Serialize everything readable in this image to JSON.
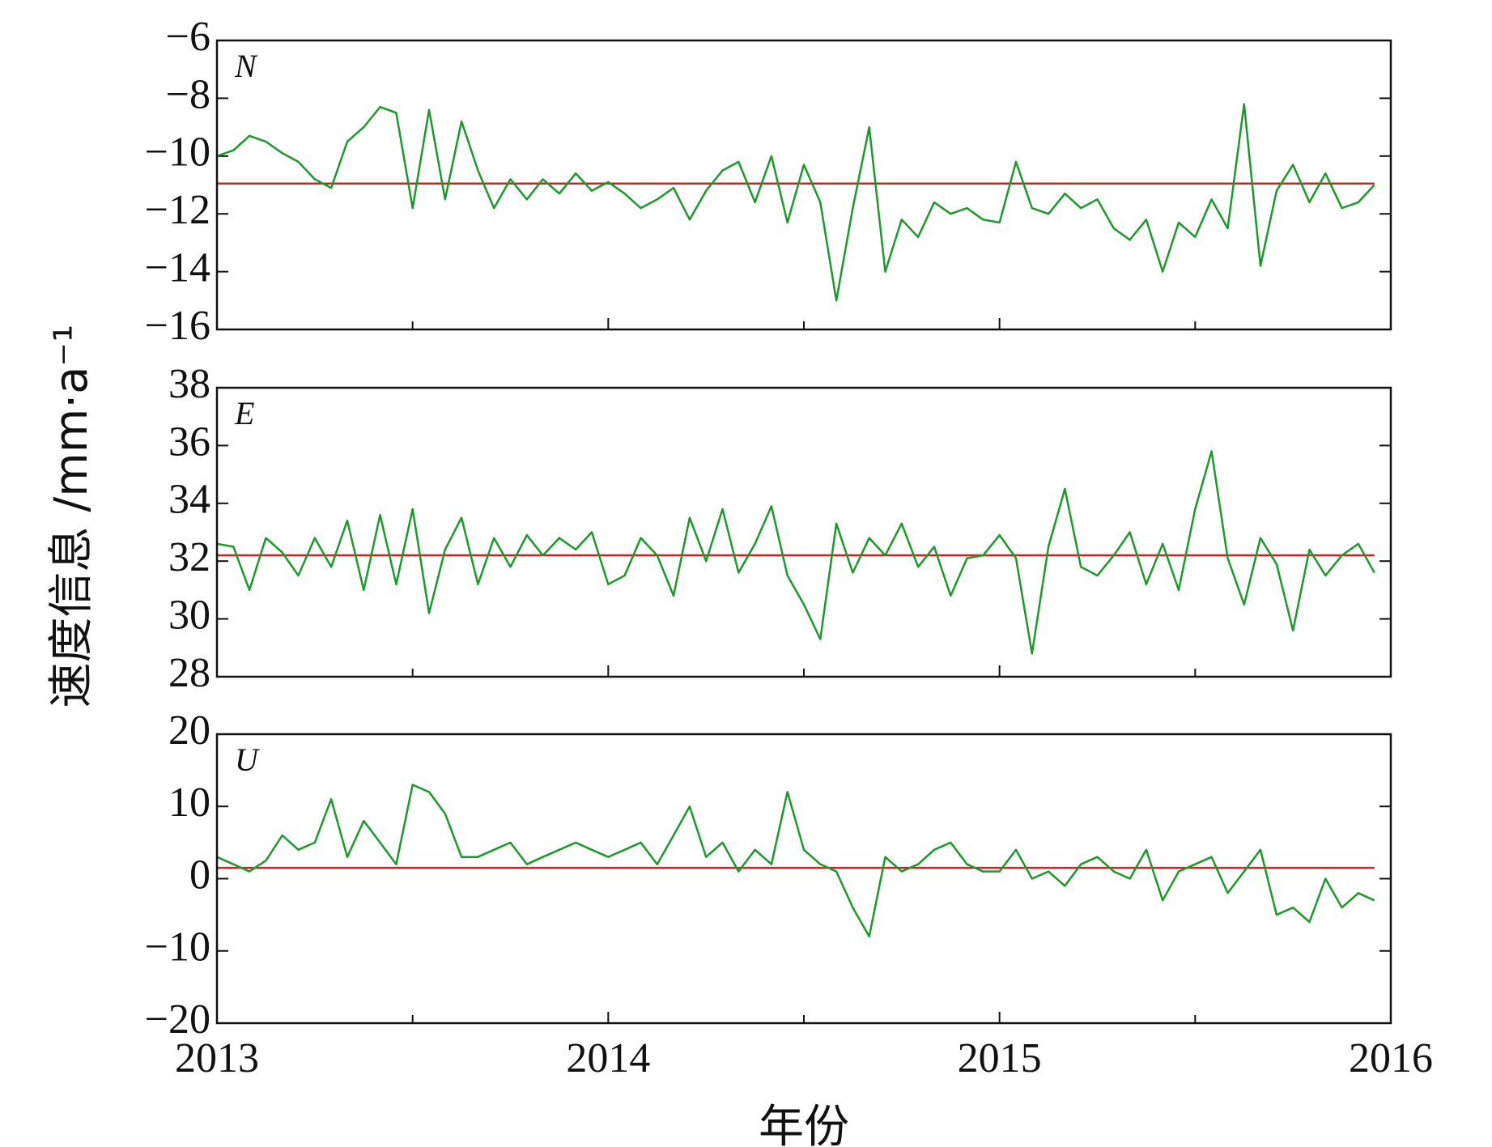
{
  "chart_data": [
    {
      "type": "line",
      "label": "N",
      "x": [
        2013,
        2013.042,
        2013.083,
        2013.125,
        2013.167,
        2013.208,
        2013.25,
        2013.292,
        2013.333,
        2013.375,
        2013.417,
        2013.458,
        2013.5,
        2013.542,
        2013.583,
        2013.625,
        2013.667,
        2013.708,
        2013.75,
        2013.792,
        2013.833,
        2013.875,
        2013.917,
        2013.958,
        2014,
        2014.042,
        2014.083,
        2014.125,
        2014.167,
        2014.208,
        2014.25,
        2014.292,
        2014.333,
        2014.375,
        2014.417,
        2014.458,
        2014.5,
        2014.542,
        2014.583,
        2014.625,
        2014.667,
        2014.708,
        2014.75,
        2014.792,
        2014.833,
        2014.875,
        2014.917,
        2014.958,
        2015,
        2015.042,
        2015.083,
        2015.125,
        2015.167,
        2015.208,
        2015.25,
        2015.292,
        2015.333,
        2015.375,
        2015.417,
        2015.458,
        2015.5,
        2015.542,
        2015.583,
        2015.625,
        2015.667,
        2015.708,
        2015.75,
        2015.792,
        2015.833,
        2015.875,
        2015.917,
        2015.958
      ],
      "series": [
        {
          "color": "#1a9a2a",
          "values": [
            -10,
            -9.8,
            -9.3,
            -9.5,
            -9.9,
            -10.2,
            -10.8,
            -11.1,
            -9.5,
            -9.0,
            -8.3,
            -8.5,
            -11.8,
            -8.4,
            -11.5,
            -8.8,
            -10.5,
            -11.8,
            -10.8,
            -11.5,
            -10.8,
            -11.3,
            -10.6,
            -11.2,
            -10.9,
            -11.3,
            -11.8,
            -11.5,
            -11.1,
            -12.2,
            -11.2,
            -10.5,
            -10.2,
            -11.6,
            -10.0,
            -12.3,
            -10.3,
            -11.6,
            -15.0,
            -11.8,
            -9.0,
            -14.0,
            -12.2,
            -12.8,
            -11.6,
            -12.0,
            -11.8,
            -12.2,
            -12.3,
            -10.2,
            -11.8,
            -12.0,
            -11.3,
            -11.8,
            -11.5,
            -12.5,
            -12.9,
            -12.2,
            -14.0,
            -12.3,
            -12.8,
            -11.5,
            -12.5,
            -8.2,
            -13.8,
            -11.2,
            -10.3,
            -11.6,
            -10.6,
            -11.8,
            -11.6,
            -11.0
          ]
        }
      ],
      "hline": -10.95,
      "hline_color": "#d42020",
      "xlim": [
        2013,
        2016
      ],
      "xticks": [
        2013,
        2014,
        2015,
        2016
      ],
      "xminorticks": [
        2013.5,
        2014.5,
        2015.5
      ],
      "ylim": [
        -16,
        -6
      ],
      "yticks": [
        {
          "value": -16,
          "label": "−16"
        },
        {
          "value": -14,
          "label": "−14"
        },
        {
          "value": -12,
          "label": "−12"
        },
        {
          "value": -10,
          "label": "−10"
        },
        {
          "value": -8,
          "label": "−8"
        },
        {
          "value": -6,
          "label": "−6"
        }
      ]
    },
    {
      "type": "line",
      "label": "E",
      "ylabel": "速度信息 /mm·a⁻¹",
      "x": [
        2013,
        2013.042,
        2013.083,
        2013.125,
        2013.167,
        2013.208,
        2013.25,
        2013.292,
        2013.333,
        2013.375,
        2013.417,
        2013.458,
        2013.5,
        2013.542,
        2013.583,
        2013.625,
        2013.667,
        2013.708,
        2013.75,
        2013.792,
        2013.833,
        2013.875,
        2013.917,
        2013.958,
        2014,
        2014.042,
        2014.083,
        2014.125,
        2014.167,
        2014.208,
        2014.25,
        2014.292,
        2014.333,
        2014.375,
        2014.417,
        2014.458,
        2014.5,
        2014.542,
        2014.583,
        2014.625,
        2014.667,
        2014.708,
        2014.75,
        2014.792,
        2014.833,
        2014.875,
        2014.917,
        2014.958,
        2015,
        2015.042,
        2015.083,
        2015.125,
        2015.167,
        2015.208,
        2015.25,
        2015.292,
        2015.333,
        2015.375,
        2015.417,
        2015.458,
        2015.5,
        2015.542,
        2015.583,
        2015.625,
        2015.667,
        2015.708,
        2015.75,
        2015.792,
        2015.833,
        2015.875,
        2015.917,
        2015.958
      ],
      "series": [
        {
          "color": "#1a9a2a",
          "values": [
            32.6,
            32.5,
            31.0,
            32.8,
            32.3,
            31.5,
            32.8,
            31.8,
            33.4,
            31.0,
            33.6,
            31.2,
            33.8,
            30.2,
            32.4,
            33.5,
            31.2,
            32.8,
            31.8,
            32.9,
            32.2,
            32.8,
            32.4,
            33.0,
            31.2,
            31.5,
            32.8,
            32.2,
            30.8,
            33.5,
            32.0,
            33.8,
            31.6,
            32.6,
            33.9,
            31.5,
            30.5,
            29.3,
            33.3,
            31.6,
            32.8,
            32.2,
            33.3,
            31.8,
            32.5,
            30.8,
            32.1,
            32.2,
            32.9,
            32.1,
            28.8,
            32.5,
            34.5,
            31.8,
            31.5,
            32.2,
            33.0,
            31.2,
            32.6,
            31.0,
            33.8,
            35.8,
            32.1,
            30.5,
            32.8,
            31.9,
            29.6,
            32.4,
            31.5,
            32.2,
            32.6,
            31.6
          ]
        }
      ],
      "hline": 32.2,
      "hline_color": "#d42020",
      "xlim": [
        2013,
        2016
      ],
      "xticks": [
        2013,
        2014,
        2015,
        2016
      ],
      "xminorticks": [
        2013.5,
        2014.5,
        2015.5
      ],
      "ylim": [
        28,
        38
      ],
      "yticks": [
        28,
        30,
        32,
        34,
        36,
        38
      ]
    },
    {
      "type": "line",
      "label": "U",
      "xlabel": "年份",
      "x": [
        2013,
        2013.042,
        2013.083,
        2013.125,
        2013.167,
        2013.208,
        2013.25,
        2013.292,
        2013.333,
        2013.375,
        2013.417,
        2013.458,
        2013.5,
        2013.542,
        2013.583,
        2013.625,
        2013.667,
        2013.708,
        2013.75,
        2013.792,
        2013.833,
        2013.875,
        2013.917,
        2013.958,
        2014,
        2014.042,
        2014.083,
        2014.125,
        2014.167,
        2014.208,
        2014.25,
        2014.292,
        2014.333,
        2014.375,
        2014.417,
        2014.458,
        2014.5,
        2014.542,
        2014.583,
        2014.625,
        2014.667,
        2014.708,
        2014.75,
        2014.792,
        2014.833,
        2014.875,
        2014.917,
        2014.958,
        2015,
        2015.042,
        2015.083,
        2015.125,
        2015.167,
        2015.208,
        2015.25,
        2015.292,
        2015.333,
        2015.375,
        2015.417,
        2015.458,
        2015.5,
        2015.542,
        2015.583,
        2015.625,
        2015.667,
        2015.708,
        2015.75,
        2015.792,
        2015.833,
        2015.875,
        2015.917,
        2015.958
      ],
      "series": [
        {
          "color": "#1a9a2a",
          "values": [
            3,
            2,
            1,
            2.5,
            6,
            4,
            5,
            11,
            3,
            8,
            5,
            2,
            13,
            12,
            9,
            3,
            3,
            4,
            5,
            2,
            3,
            4,
            5,
            4,
            3,
            4,
            5,
            2,
            6,
            10,
            3,
            5,
            1,
            4,
            2,
            12,
            4,
            2,
            1,
            -4,
            -8,
            3,
            1,
            2,
            4,
            5,
            2,
            1,
            1,
            4,
            0,
            1,
            -1,
            2,
            3,
            1,
            0,
            4,
            -3,
            1,
            2,
            3,
            -2,
            1,
            4,
            -5,
            -4,
            -6,
            0,
            -4,
            -2,
            -3
          ]
        }
      ],
      "hline": 1.5,
      "hline_color": "#d42020",
      "xlim": [
        2013,
        2016
      ],
      "xticks": [
        2013,
        2014,
        2015,
        2016
      ],
      "xminorticks": [
        2013.5,
        2014.5,
        2015.5
      ],
      "ylim": [
        -20,
        20
      ],
      "yticks": [
        {
          "value": -20,
          "label": "−20"
        },
        {
          "value": -10,
          "label": "−10"
        },
        0,
        10,
        20
      ]
    }
  ]
}
